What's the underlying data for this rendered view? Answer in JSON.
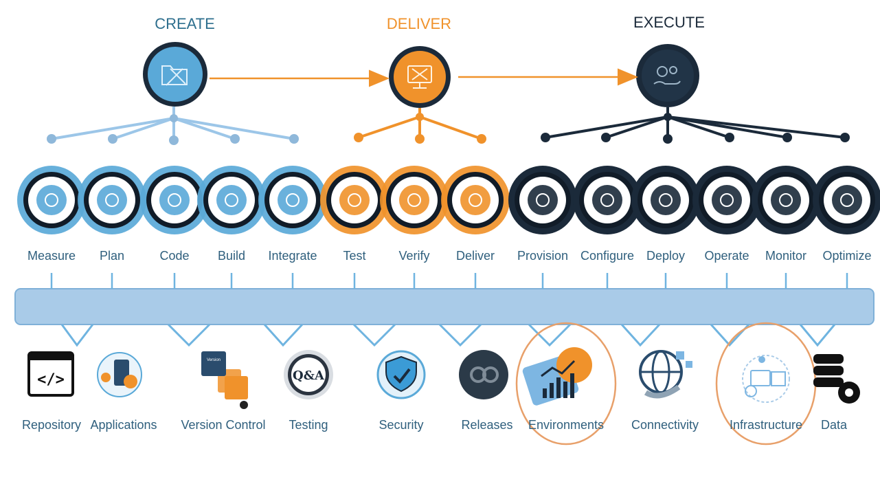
{
  "colors": {
    "create": "#5aa9d8",
    "create_text": "#2e6f8e",
    "deliver": "#f0922b",
    "execute": "#1b2a3a",
    "label": "#2f5f7d",
    "bus": "#a9cbe8",
    "bus_border": "#7fb0d8",
    "connector": "#6fb4e0",
    "highlight": "#e8a06a"
  },
  "phases": [
    {
      "id": "create",
      "label": "CREATE",
      "icon": "folder-tools-icon"
    },
    {
      "id": "deliver",
      "label": "DELIVER",
      "icon": "monitor-tools-icon"
    },
    {
      "id": "execute",
      "label": "EXECUTE",
      "icon": "gears-hand-icon"
    }
  ],
  "steps": [
    {
      "label": "Measure",
      "phase": "create",
      "icon": "measure-chart-icon"
    },
    {
      "label": "Plan",
      "phase": "create",
      "icon": "document-plan-icon"
    },
    {
      "label": "Code",
      "phase": "create",
      "icon": "code-window-icon"
    },
    {
      "label": "Build",
      "phase": "create",
      "icon": "build-bug-icon"
    },
    {
      "label": "Integrate",
      "phase": "create",
      "icon": "integrate-puzzle-icon"
    },
    {
      "label": "Test",
      "phase": "deliver",
      "icon": "test-check-icon"
    },
    {
      "label": "Verify",
      "phase": "deliver",
      "icon": "verify-checkbox-icon"
    },
    {
      "label": "Deliver",
      "phase": "deliver",
      "icon": "deliver-box-icon"
    },
    {
      "label": "Provision",
      "phase": "execute",
      "icon": "provision-gear-icon"
    },
    {
      "label": "Configure",
      "phase": "execute",
      "icon": "configure-gears-icon"
    },
    {
      "label": "Deploy",
      "phase": "execute",
      "icon": "deploy-server-icon"
    },
    {
      "label": "Operate",
      "phase": "execute",
      "icon": "operate-toggle-icon"
    },
    {
      "label": "Monitor",
      "phase": "execute",
      "icon": "monitor-magnifier-icon"
    },
    {
      "label": "Optimize",
      "phase": "execute",
      "icon": "optimize-dashboard-icon"
    }
  ],
  "resources": [
    {
      "label": "Repository",
      "icon": "code-brackets-icon",
      "highlighted": false
    },
    {
      "label": "Applications",
      "icon": "applications-gear-icon",
      "highlighted": false
    },
    {
      "label": "Version Control",
      "icon": "version-stack-icon",
      "highlighted": false
    },
    {
      "label": "Testing",
      "icon": "qa-badge-icon",
      "highlighted": false
    },
    {
      "label": "Security",
      "icon": "shield-check-icon",
      "highlighted": false
    },
    {
      "label": "Releases",
      "icon": "releases-gears-icon",
      "highlighted": false
    },
    {
      "label": "Environments",
      "icon": "chart-growth-icon",
      "highlighted": true
    },
    {
      "label": "Connectivity",
      "icon": "globe-network-icon",
      "highlighted": false
    },
    {
      "label": "Infrastructure",
      "icon": "infrastructure-network-icon",
      "highlighted": true
    },
    {
      "label": "Data",
      "icon": "database-gear-icon",
      "highlighted": false
    }
  ],
  "texts": {
    "qa": "Q&A",
    "code_tag": "</>",
    "version_tag": "Version"
  }
}
